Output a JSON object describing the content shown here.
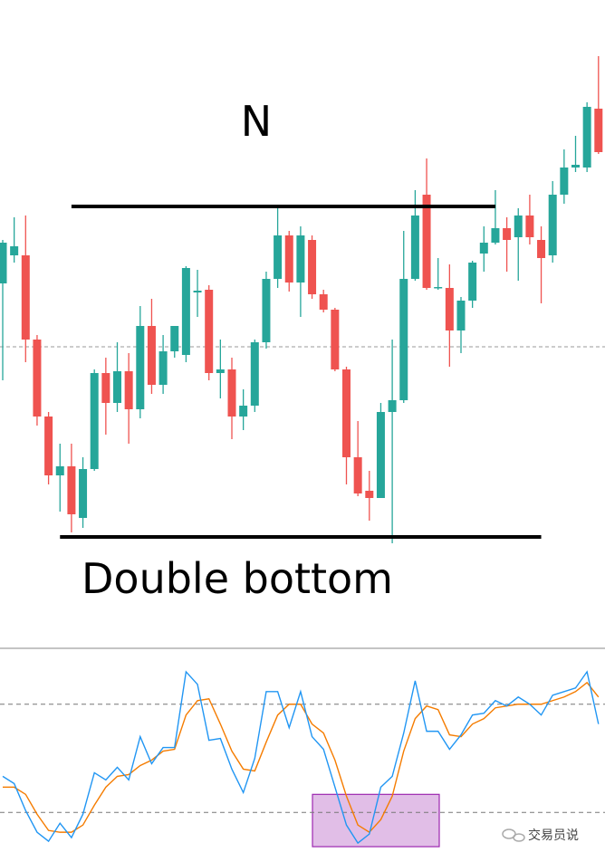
{
  "chart_data": [
    {
      "type": "candlestick",
      "title": "N",
      "caption": "Double bottom",
      "up_color": "#26a69a",
      "down_color": "#ef5350",
      "ylim": [
        0,
        715
      ],
      "open": [
        402,
        433,
        433,
        340,
        255,
        190,
        200,
        143,
        197,
        303,
        270,
        305,
        263,
        355,
        290,
        327,
        323,
        392,
        395,
        303,
        307,
        255,
        267,
        337,
        407,
        455,
        403,
        450,
        390,
        373,
        307,
        210,
        173,
        165,
        260,
        273,
        407,
        500,
        397,
        397,
        350,
        383,
        435,
        447,
        463,
        453,
        477,
        450,
        433,
        500,
        530,
        530,
        595
      ],
      "high": [
        450,
        475,
        477,
        345,
        260,
        225,
        225,
        210,
        307,
        320,
        337,
        325,
        377,
        385,
        345,
        355,
        421,
        417,
        400,
        340,
        320,
        285,
        340,
        415,
        485,
        460,
        465,
        455,
        395,
        375,
        310,
        250,
        195,
        270,
        340,
        460,
        505,
        540,
        430,
        423,
        387,
        427,
        465,
        505,
        475,
        485,
        500,
        465,
        515,
        550,
        565,
        602,
        653
      ],
      "low": [
        295,
        425,
        315,
        245,
        180,
        150,
        127,
        132,
        195,
        235,
        260,
        225,
        253,
        280,
        280,
        320,
        315,
        365,
        295,
        275,
        230,
        240,
        260,
        330,
        397,
        393,
        365,
        385,
        370,
        305,
        180,
        167,
        140,
        165,
        115,
        270,
        405,
        395,
        395,
        310,
        325,
        375,
        415,
        445,
        415,
        405,
        445,
        380,
        425,
        490,
        525,
        525,
        545
      ],
      "close": [
        447,
        443,
        340,
        255,
        190,
        200,
        147,
        197,
        303,
        270,
        305,
        263,
        355,
        290,
        327,
        355,
        419,
        394,
        303,
        307,
        255,
        267,
        337,
        407,
        455,
        403,
        455,
        390,
        373,
        307,
        210,
        170,
        165,
        260,
        273,
        407,
        477,
        397,
        398,
        350,
        383,
        425,
        447,
        463,
        450,
        477,
        453,
        430,
        500,
        530,
        533,
        597,
        547
      ],
      "resistance": 487,
      "support": 122,
      "ref_line": 332
    },
    {
      "type": "line",
      "ylim": [
        -7,
        110
      ],
      "levels": [
        80,
        20
      ],
      "highlight_range": [
        1,
        30
      ],
      "highlight_color": "#e1bee7",
      "series": [
        {
          "color": "#2196f3",
          "values": [
            40,
            36,
            21,
            9,
            4,
            14,
            6,
            19,
            42,
            38,
            45,
            38,
            62,
            47,
            56,
            56,
            98,
            91,
            60,
            61,
            44,
            31,
            50,
            87,
            87,
            67,
            87,
            62,
            55,
            34,
            13,
            3,
            8,
            34,
            40,
            64,
            93,
            65,
            65,
            55,
            63,
            74,
            75,
            82,
            79,
            84,
            80,
            74,
            85,
            87,
            89,
            98,
            69
          ]
        },
        {
          "color": "#f57c00",
          "values": [
            34,
            34,
            30,
            19,
            10,
            9,
            9,
            13,
            24,
            34,
            40,
            41,
            46,
            49,
            54,
            55,
            74,
            82,
            83,
            69,
            54,
            44,
            43,
            59,
            74,
            80,
            80,
            69,
            64,
            49,
            29,
            13,
            9,
            16,
            29,
            54,
            72,
            79,
            77,
            63,
            62,
            69,
            72,
            78,
            79,
            80,
            80,
            80,
            82,
            84,
            87,
            92,
            84
          ]
        }
      ]
    }
  ],
  "watermark": "交易员说"
}
